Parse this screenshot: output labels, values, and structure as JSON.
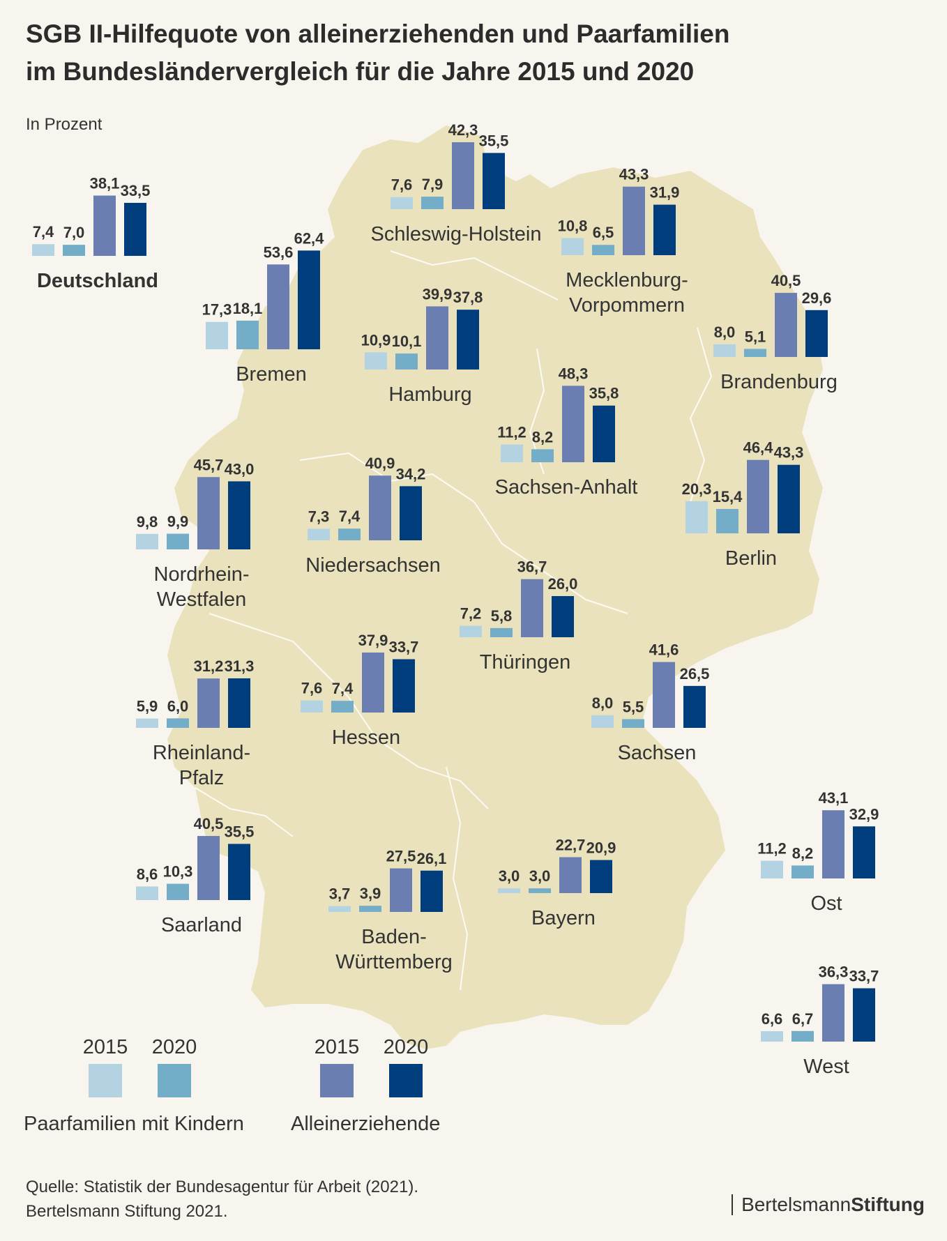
{
  "title_line1": "SGB II-Hilfequote von alleinerziehenden und Paarfamilien",
  "title_line2": "im Bundesländervergleich für  die Jahre 2015 und 2020",
  "subtitle": "In Prozent",
  "colors": {
    "paar_2015": "#b3d3e3",
    "paar_2020": "#74adc8",
    "allein_2015": "#6a7eb1",
    "allein_2020": "#003d7c",
    "map": "#e9e2bc",
    "background": "#f8f5ee"
  },
  "chart_data": {
    "type": "bar",
    "unit": "Prozent",
    "categories": [
      "Paarfamilien mit Kindern 2015",
      "Paarfamilien mit Kindern 2020",
      "Alleinerziehende 2015",
      "Alleinerziehende 2020"
    ],
    "regions": [
      {
        "id": "deutschland",
        "name_lines": [
          "Deutschland"
        ],
        "bold": true,
        "values": [
          7.4,
          7.0,
          38.1,
          33.5
        ]
      },
      {
        "id": "schleswig-holstein",
        "name_lines": [
          "Schleswig-Holstein"
        ],
        "values": [
          7.6,
          7.9,
          42.3,
          35.5
        ]
      },
      {
        "id": "mecklenburg-vorpommern",
        "name_lines": [
          "Mecklenburg-",
          "Vorpommern"
        ],
        "values": [
          10.8,
          6.5,
          43.3,
          31.9
        ]
      },
      {
        "id": "bremen",
        "name_lines": [
          "Bremen"
        ],
        "values": [
          17.3,
          18.1,
          53.6,
          62.4
        ]
      },
      {
        "id": "hamburg",
        "name_lines": [
          "Hamburg"
        ],
        "values": [
          10.9,
          10.1,
          39.9,
          37.8
        ]
      },
      {
        "id": "brandenburg",
        "name_lines": [
          "Brandenburg"
        ],
        "values": [
          8.0,
          5.1,
          40.5,
          29.6
        ]
      },
      {
        "id": "sachsen-anhalt",
        "name_lines": [
          "Sachsen-Anhalt"
        ],
        "values": [
          11.2,
          8.2,
          48.3,
          35.8
        ]
      },
      {
        "id": "berlin",
        "name_lines": [
          "Berlin"
        ],
        "values": [
          20.3,
          15.4,
          46.4,
          43.3
        ]
      },
      {
        "id": "nordrhein-westfalen",
        "name_lines": [
          "Nordrhein-",
          "Westfalen"
        ],
        "values": [
          9.8,
          9.9,
          45.7,
          43.0
        ]
      },
      {
        "id": "niedersachsen",
        "name_lines": [
          "Niedersachsen"
        ],
        "values": [
          7.3,
          7.4,
          40.9,
          34.2
        ]
      },
      {
        "id": "thueringen",
        "name_lines": [
          "Thüringen"
        ],
        "values": [
          7.2,
          5.8,
          36.7,
          26.0
        ]
      },
      {
        "id": "rheinland-pfalz",
        "name_lines": [
          "Rheinland-",
          "Pfalz"
        ],
        "values": [
          5.9,
          6.0,
          31.2,
          31.3
        ]
      },
      {
        "id": "hessen",
        "name_lines": [
          "Hessen"
        ],
        "values": [
          7.6,
          7.4,
          37.9,
          33.7
        ]
      },
      {
        "id": "sachsen",
        "name_lines": [
          "Sachsen"
        ],
        "values": [
          8.0,
          5.5,
          41.6,
          26.5
        ]
      },
      {
        "id": "saarland",
        "name_lines": [
          "Saarland"
        ],
        "values": [
          8.6,
          10.3,
          40.5,
          35.5
        ]
      },
      {
        "id": "baden-wuerttemberg",
        "name_lines": [
          "Baden-",
          "Württemberg"
        ],
        "values": [
          3.7,
          3.9,
          27.5,
          26.1
        ]
      },
      {
        "id": "bayern",
        "name_lines": [
          "Bayern"
        ],
        "values": [
          3.0,
          3.0,
          22.7,
          20.9
        ]
      },
      {
        "id": "ost",
        "name_lines": [
          "Ost"
        ],
        "values": [
          11.2,
          8.2,
          43.1,
          32.9
        ]
      },
      {
        "id": "west",
        "name_lines": [
          "West"
        ],
        "values": [
          6.6,
          6.7,
          36.3,
          33.7
        ]
      }
    ]
  },
  "legend": {
    "paar": {
      "year_2015": "2015",
      "year_2020": "2020",
      "label": "Paarfamilien mit Kindern"
    },
    "allein": {
      "year_2015": "2015",
      "year_2020": "2020",
      "label": "Alleinerziehende"
    }
  },
  "source_line1": "Quelle: Statistik der Bundesagentur für Arbeit (2021).",
  "source_line2": "Bertelsmann Stiftung 2021.",
  "brand_regular": "Bertelsmann",
  "brand_bold": "Stiftung"
}
